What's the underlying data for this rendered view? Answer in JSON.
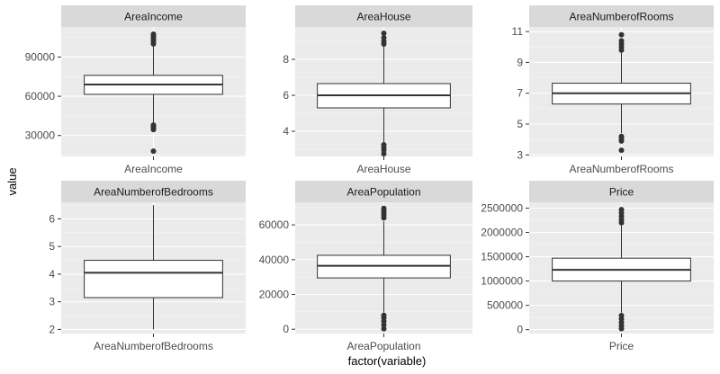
{
  "figure": {
    "ylabel": "value",
    "xlabel": "factor(variable)"
  },
  "colors": {
    "panel_bg": "#ebebeb",
    "strip_bg": "#d9d9d9",
    "grid_major": "#ffffff",
    "grid_minor": "#f5f5f5",
    "box_fill": "#ffffff",
    "line": "#333333",
    "outlier": "#333333",
    "tick_text": "#4d4d4d",
    "strip_text": "#1a1a1a",
    "axis_title": "#000000"
  },
  "chart_data": [
    {
      "type": "box",
      "title": "AreaIncome",
      "categories": [
        "AreaIncome"
      ],
      "y_ticks": [
        30000,
        60000,
        90000
      ],
      "y_tick_labels": [
        "30000",
        "60000",
        "90000"
      ],
      "ylim": [
        14000,
        113000
      ],
      "box": {
        "whisker_low": 39000,
        "q1": 61500,
        "median": 69000,
        "q3": 76000,
        "whisker_high": 98500
      },
      "outliers": [
        18000,
        34500,
        36000,
        37000,
        38000,
        100000,
        101500,
        103000,
        104500,
        106000,
        107500
      ]
    },
    {
      "type": "box",
      "title": "AreaHouse",
      "categories": [
        "AreaHouse"
      ],
      "y_ticks": [
        4,
        6,
        8
      ],
      "y_tick_labels": [
        "4",
        "6",
        "8"
      ],
      "ylim": [
        2.6,
        9.8
      ],
      "box": {
        "whisker_low": 3.4,
        "q1": 5.3,
        "median": 6.0,
        "q3": 6.65,
        "whisker_high": 8.7
      },
      "outliers": [
        2.75,
        2.95,
        3.1,
        3.25,
        8.85,
        9.0,
        9.2,
        9.45
      ]
    },
    {
      "type": "box",
      "title": "AreaNumberofRooms",
      "categories": [
        "AreaNumberofRooms"
      ],
      "y_ticks": [
        3,
        5,
        7,
        9,
        11
      ],
      "y_tick_labels": [
        "3",
        "5",
        "7",
        "9",
        "11"
      ],
      "ylim": [
        2.9,
        11.3
      ],
      "box": {
        "whisker_low": 4.4,
        "q1": 6.3,
        "median": 7.0,
        "q3": 7.65,
        "whisker_high": 9.7
      },
      "outliers": [
        3.3,
        3.9,
        4.05,
        4.2,
        9.8,
        10.0,
        10.2,
        10.4,
        10.8
      ]
    },
    {
      "type": "box",
      "title": "AreaNumberofBedrooms",
      "categories": [
        "AreaNumberofBedrooms"
      ],
      "y_ticks": [
        2,
        3,
        4,
        5,
        6
      ],
      "y_tick_labels": [
        "2",
        "3",
        "4",
        "5",
        "6"
      ],
      "ylim": [
        1.85,
        6.6
      ],
      "box": {
        "whisker_low": 2.0,
        "q1": 3.15,
        "median": 4.05,
        "q3": 4.5,
        "whisker_high": 6.5
      },
      "outliers": []
    },
    {
      "type": "box",
      "title": "AreaPopulation",
      "categories": [
        "AreaPopulation"
      ],
      "y_ticks": [
        0,
        20000,
        40000,
        60000
      ],
      "y_tick_labels": [
        "0",
        "20000",
        "40000",
        "60000"
      ],
      "ylim": [
        -2500,
        73000
      ],
      "box": {
        "whisker_low": 9500,
        "q1": 29500,
        "median": 36500,
        "q3": 42500,
        "whisker_high": 62000
      },
      "outliers": [
        200,
        2500,
        4500,
        6500,
        8000,
        64000,
        65500,
        67000,
        68500,
        69500
      ]
    },
    {
      "type": "box",
      "title": "Price",
      "categories": [
        "Price"
      ],
      "y_ticks": [
        0,
        500000,
        1000000,
        1500000,
        2000000,
        2500000
      ],
      "y_tick_labels": [
        "0",
        "500000",
        "1000000",
        "1500000",
        "2000000",
        "2500000"
      ],
      "ylim": [
        -80000,
        2620000
      ],
      "box": {
        "whisker_low": 350000,
        "q1": 1000000,
        "median": 1230000,
        "q3": 1470000,
        "whisker_high": 2150000
      },
      "outliers": [
        20000,
        80000,
        150000,
        220000,
        290000,
        2200000,
        2260000,
        2330000,
        2400000,
        2470000
      ]
    }
  ]
}
